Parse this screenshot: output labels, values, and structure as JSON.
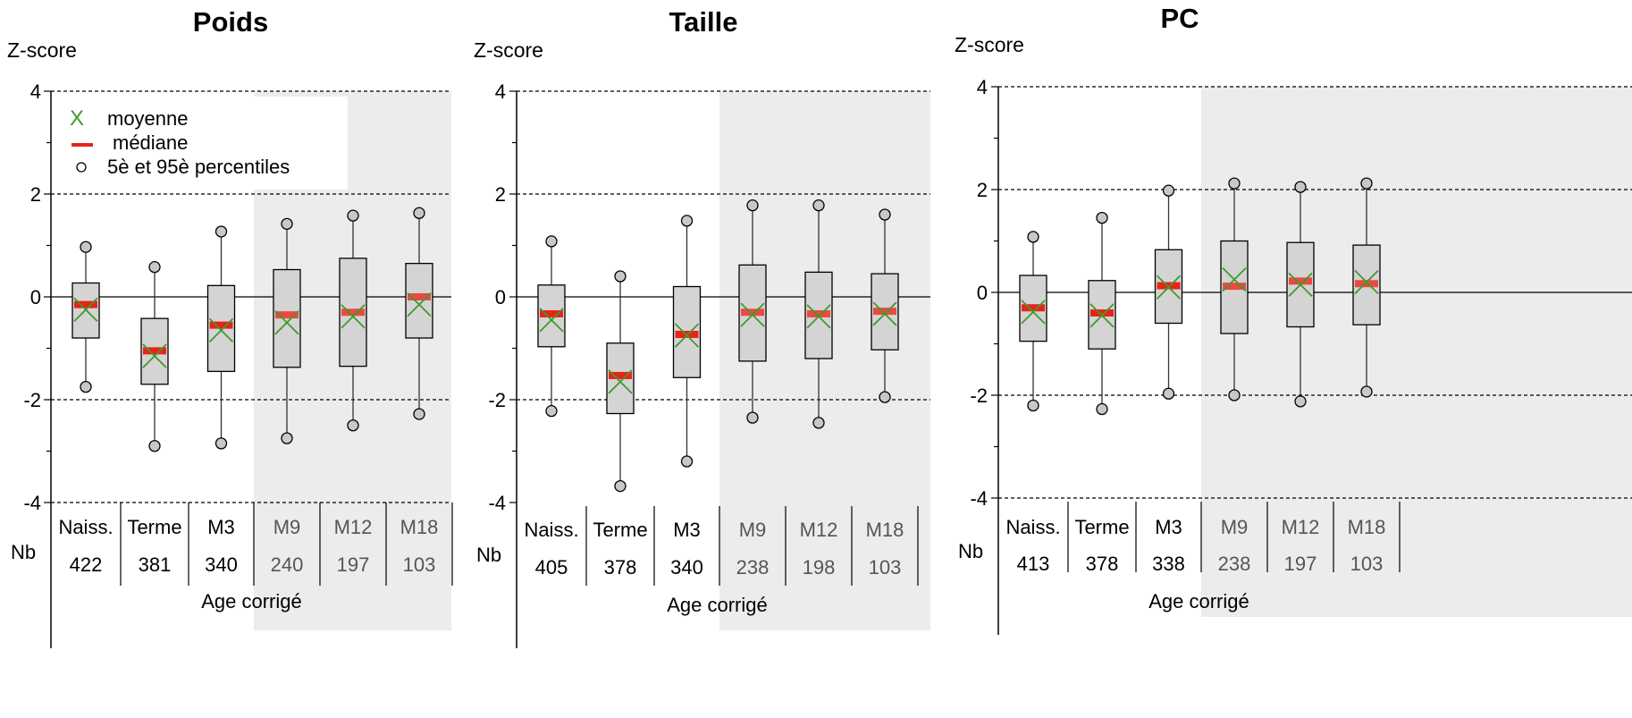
{
  "legend": {
    "items": [
      {
        "symbol": "X",
        "label": "moyenne"
      },
      {
        "symbol": "—",
        "label": "médiane"
      },
      {
        "symbol": "○",
        "label": "5è et 95è percentiles"
      }
    ]
  },
  "colors": {
    "box_fill": "#d4d4d4",
    "shade": "#ececec",
    "median": "#e8231a",
    "mean": "#3f9a2a",
    "line": "#333333",
    "whisker_dot": "#c8c8c8"
  },
  "chart_data": [
    {
      "type": "box",
      "title": "Poids",
      "ylabel": "Z-score",
      "ylim": [
        -4,
        4
      ],
      "yticks": [
        4,
        2,
        0,
        -2,
        -4
      ],
      "dashed_lines": [
        4,
        2,
        -2,
        -4
      ],
      "x_group_label": "Age corrigé",
      "nb_label": "Nb",
      "shaded_from_category": 3,
      "categories": [
        "Naiss.",
        "Terme",
        "M3",
        "M9",
        "M12",
        "M18"
      ],
      "nb": [
        "422",
        "381",
        "340",
        "240",
        "197",
        "103"
      ],
      "p5": [
        -1.75,
        -2.9,
        -2.85,
        -2.75,
        -2.5,
        -2.28
      ],
      "q1": [
        -0.8,
        -1.7,
        -1.45,
        -1.37,
        -1.35,
        -0.8
      ],
      "median": [
        -0.15,
        -1.05,
        -0.55,
        -0.35,
        -0.3,
        0.0
      ],
      "mean": [
        -0.25,
        -1.15,
        -0.65,
        -0.5,
        -0.38,
        -0.15
      ],
      "q3": [
        0.27,
        -0.42,
        0.22,
        0.53,
        0.75,
        0.65
      ],
      "p95": [
        0.97,
        0.58,
        1.27,
        1.42,
        1.58,
        1.63
      ]
    },
    {
      "type": "box",
      "title": "Taille",
      "ylabel": "Z-score",
      "ylim": [
        -4,
        4
      ],
      "yticks": [
        4,
        2,
        0,
        -2,
        -4
      ],
      "dashed_lines": [
        4,
        2,
        -2
      ],
      "x_group_label": "Age corrigé",
      "nb_label": "Nb",
      "shaded_from_category": 3,
      "categories": [
        "Naiss.",
        "Terme",
        "M3",
        "M9",
        "M12",
        "M18"
      ],
      "nb": [
        "405",
        "378",
        "340",
        "238",
        "198",
        "103"
      ],
      "p5": [
        -2.22,
        -3.68,
        -3.2,
        -2.35,
        -2.45,
        -1.95
      ],
      "q1": [
        -0.97,
        -2.27,
        -1.57,
        -1.25,
        -1.2,
        -1.03
      ],
      "median": [
        -0.33,
        -1.53,
        -0.73,
        -0.3,
        -0.33,
        -0.28
      ],
      "mean": [
        -0.45,
        -1.65,
        -0.75,
        -0.35,
        -0.38,
        -0.33
      ],
      "q3": [
        0.23,
        -0.9,
        0.2,
        0.62,
        0.48,
        0.45
      ],
      "p95": [
        1.08,
        0.4,
        1.48,
        1.78,
        1.78,
        1.6
      ]
    },
    {
      "type": "box",
      "title": "PC",
      "ylabel": "Z-score",
      "ylim": [
        -4,
        4
      ],
      "yticks": [
        4,
        2,
        0,
        -2,
        -4
      ],
      "dashed_lines": [
        4,
        2,
        -2,
        -4
      ],
      "x_group_label": "Age corrigé",
      "nb_label": "Nb",
      "shaded_from_category": 3,
      "categories": [
        "Naiss.",
        "Terme",
        "M3",
        "M9",
        "M12",
        "M18"
      ],
      "nb": [
        "413",
        "378",
        "338",
        "238",
        "197",
        "103"
      ],
      "p5": [
        -2.2,
        -2.27,
        -1.97,
        -2.0,
        -2.12,
        -1.93
      ],
      "q1": [
        -0.95,
        -1.1,
        -0.6,
        -0.8,
        -0.67,
        -0.63
      ],
      "median": [
        -0.3,
        -0.4,
        0.13,
        0.12,
        0.22,
        0.17
      ],
      "mean": [
        -0.38,
        -0.45,
        0.1,
        0.25,
        0.15,
        0.2
      ],
      "q3": [
        0.33,
        0.23,
        0.83,
        1.0,
        0.97,
        0.92
      ],
      "p95": [
        1.08,
        1.45,
        1.98,
        2.12,
        2.05,
        2.12
      ]
    }
  ]
}
